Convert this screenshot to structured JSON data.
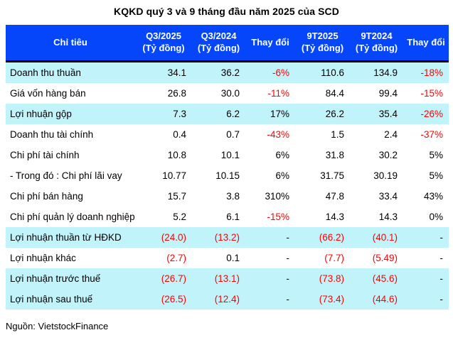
{
  "colors": {
    "header_bg": "#0546fa",
    "header_text": "#ffffff",
    "highlight_row_bg": "#c1f3fb",
    "negative_value": "#ff0000",
    "normal_text": "#000000",
    "header_divider": "#000000"
  },
  "chart_data": {
    "type": "table",
    "title": "KQKD quý 3 và 9 tháng đầu năm 2025 của SCD",
    "source_note": "Nguồn: VietstockFinance",
    "columns": [
      "Chỉ tiêu",
      "Q3/2025\n(Tỷ đồng)",
      "Q3/2024\n(Tỷ đồng)",
      "Thay đổi",
      "9T2025\n(Tỷ đồng)",
      "9T2024\n(Tỷ đồng)",
      "Thay đổi"
    ],
    "rows": [
      {
        "label": "Doanh thu thuần",
        "highlight": true,
        "values": [
          "34.1",
          "36.2",
          "-6%",
          "110.6",
          "134.9",
          "-18%"
        ]
      },
      {
        "label": "Giá vốn hàng bán",
        "highlight": false,
        "values": [
          "26.8",
          "30.0",
          "-11%",
          "84.4",
          "99.4",
          "-15%"
        ]
      },
      {
        "label": "Lợi nhuận gộp",
        "highlight": true,
        "values": [
          "7.3",
          "6.2",
          "17%",
          "26.2",
          "35.4",
          "-26%"
        ]
      },
      {
        "label": "Doanh thu tài chính",
        "highlight": false,
        "values": [
          "0.4",
          "0.7",
          "-43%",
          "1.5",
          "2.4",
          "-37%"
        ]
      },
      {
        "label": "Chi phí tài chính",
        "highlight": false,
        "values": [
          "10.8",
          "10.1",
          "6%",
          "31.8",
          "30.2",
          "5%"
        ]
      },
      {
        "label": "- Trong đó : Chi phí lãi vay",
        "highlight": false,
        "values": [
          "10.77",
          "10.15",
          "6%",
          "31.75",
          "30.19",
          "5%"
        ]
      },
      {
        "label": "Chi phí bán hàng",
        "highlight": false,
        "values": [
          "15.7",
          "3.8",
          "310%",
          "47.8",
          "33.4",
          "43%"
        ]
      },
      {
        "label": "Chi phí quản lý doanh nghiệp",
        "highlight": false,
        "values": [
          "5.2",
          "6.1",
          "-15%",
          "14.3",
          "14.3",
          "0%"
        ]
      },
      {
        "label": "Lợi nhuận thuần từ HĐKD",
        "highlight": true,
        "values": [
          "(24.0)",
          "(13.2)",
          "-",
          "(66.2)",
          "(40.1)",
          "-"
        ]
      },
      {
        "label": "Lợi nhuận khác",
        "highlight": false,
        "values": [
          "(2.7)",
          "0.1",
          "-",
          "(7.7)",
          "(5.49)",
          "-"
        ]
      },
      {
        "label": "Lợi nhuận trước thuế",
        "highlight": true,
        "values": [
          "(26.7)",
          "(13.1)",
          "-",
          "(73.8)",
          "(45.6)",
          "-"
        ]
      },
      {
        "label": "Lợi nhuận sau thuế",
        "highlight": true,
        "values": [
          "(26.5)",
          "(12.4)",
          "-",
          "(73.4)",
          "(44.6)",
          "-"
        ]
      }
    ]
  }
}
